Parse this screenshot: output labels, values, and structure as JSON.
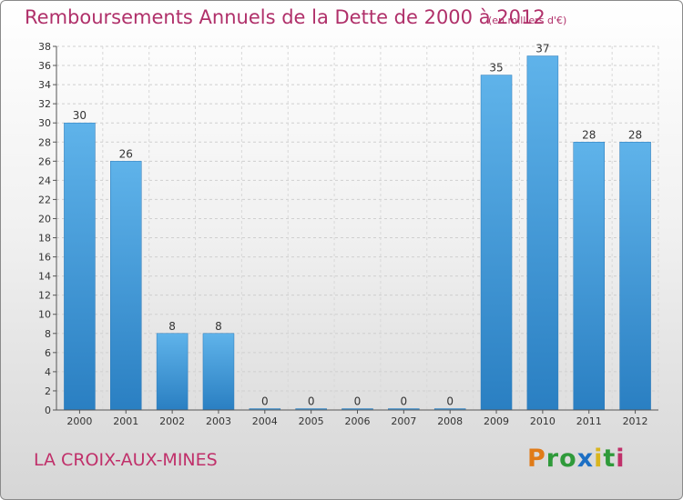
{
  "chart_data": {
    "type": "bar",
    "title": "Remboursements Annuels de la Dette de 2000 à 2012",
    "subtitle": "(en milliers d'€)",
    "categories": [
      "2000",
      "2001",
      "2002",
      "2003",
      "2004",
      "2005",
      "2006",
      "2007",
      "2008",
      "2009",
      "2010",
      "2011",
      "2012"
    ],
    "values": [
      30,
      26,
      8,
      8,
      0,
      0,
      0,
      0,
      0,
      35,
      37,
      28,
      28
    ],
    "ylim": [
      0,
      38
    ],
    "yticks": [
      0,
      2,
      4,
      6,
      8,
      10,
      12,
      14,
      16,
      18,
      20,
      22,
      24,
      26,
      28,
      30,
      32,
      34,
      36,
      38
    ],
    "grid": true,
    "bar_color": "#4ea3e0"
  },
  "footer": {
    "location": "LA CROIX-AUX-MINES",
    "logo": "Proxiti"
  }
}
